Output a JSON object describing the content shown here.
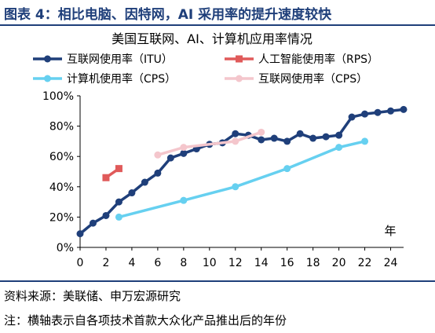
{
  "figure": {
    "label": "图表 4：相比电脑、因特网，AI 采用率的提升速度较快",
    "source": "资料来源：美联储、申万宏源研究",
    "note": "注：横轴表示自各项技术首款大众化产品推出后的年份"
  },
  "chart_data": {
    "type": "line",
    "title": "美国互联网、AI、计算机应用率情况",
    "xlabel": "年",
    "ylabel": "",
    "xlim": [
      0,
      25
    ],
    "ylim": [
      0,
      100
    ],
    "x_ticks": [
      0,
      2,
      4,
      6,
      8,
      10,
      12,
      14,
      16,
      18,
      20,
      22,
      24
    ],
    "y_ticks": [
      0,
      20,
      40,
      60,
      80,
      100
    ],
    "y_tick_labels": [
      "0%",
      "20%",
      "40%",
      "60%",
      "80%",
      "100%"
    ],
    "grid": false,
    "legend_position": "top",
    "series": [
      {
        "name": "互联网使用率（ITU）",
        "color": "#1f3f7a",
        "marker": "circle",
        "x": [
          0,
          1,
          2,
          3,
          4,
          5,
          6,
          7,
          8,
          9,
          10,
          11,
          12,
          13,
          14,
          15,
          16,
          17,
          18,
          19,
          20,
          21,
          22,
          23,
          24,
          25
        ],
        "y": [
          9,
          16,
          21,
          30,
          36,
          43,
          49,
          59,
          62,
          65,
          68,
          69,
          75,
          74,
          71,
          72,
          70,
          75,
          72,
          73,
          74,
          86,
          88,
          89,
          90,
          91
        ]
      },
      {
        "name": "人工智能使用率（RPS）",
        "color": "#e05a5a",
        "marker": "square",
        "x": [
          2,
          3
        ],
        "y": [
          46,
          52
        ]
      },
      {
        "name": "计算机使用率（CPS）",
        "color": "#66d0f0",
        "marker": "circle",
        "x": [
          3,
          8,
          12,
          16,
          20,
          22
        ],
        "y": [
          20,
          31,
          40,
          52,
          66,
          70
        ]
      },
      {
        "name": "互联网使用率（CPS）",
        "color": "#f4c6cc",
        "marker": "circle",
        "x": [
          6,
          8,
          12,
          14
        ],
        "y": [
          61,
          66,
          70,
          76
        ]
      }
    ]
  }
}
